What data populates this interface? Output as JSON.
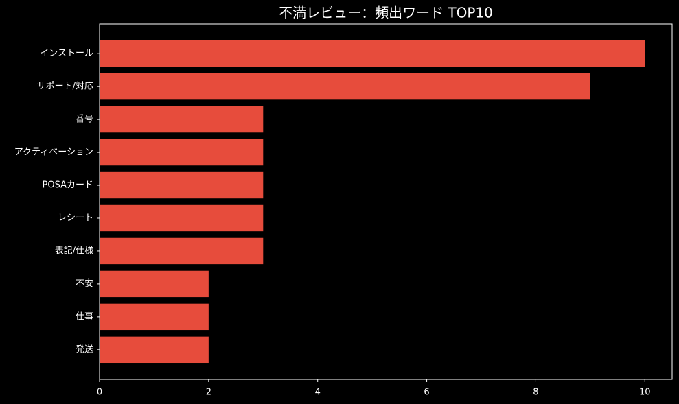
{
  "chart_data": {
    "type": "barh",
    "title": "不満レビュー：頻出ワード TOP10",
    "categories": [
      "インストール",
      "サポート/対応",
      "番号",
      "アクティベーション",
      "POSAカード",
      "レシート",
      "表記/仕様",
      "不安",
      "仕事",
      "発送"
    ],
    "values": [
      10,
      9,
      3,
      3,
      3,
      3,
      3,
      2,
      2,
      2
    ],
    "color": "#e74c3c",
    "xlim": [
      0,
      10.5
    ],
    "xticks": [
      0,
      2,
      4,
      6,
      8,
      10
    ],
    "grid": false
  }
}
